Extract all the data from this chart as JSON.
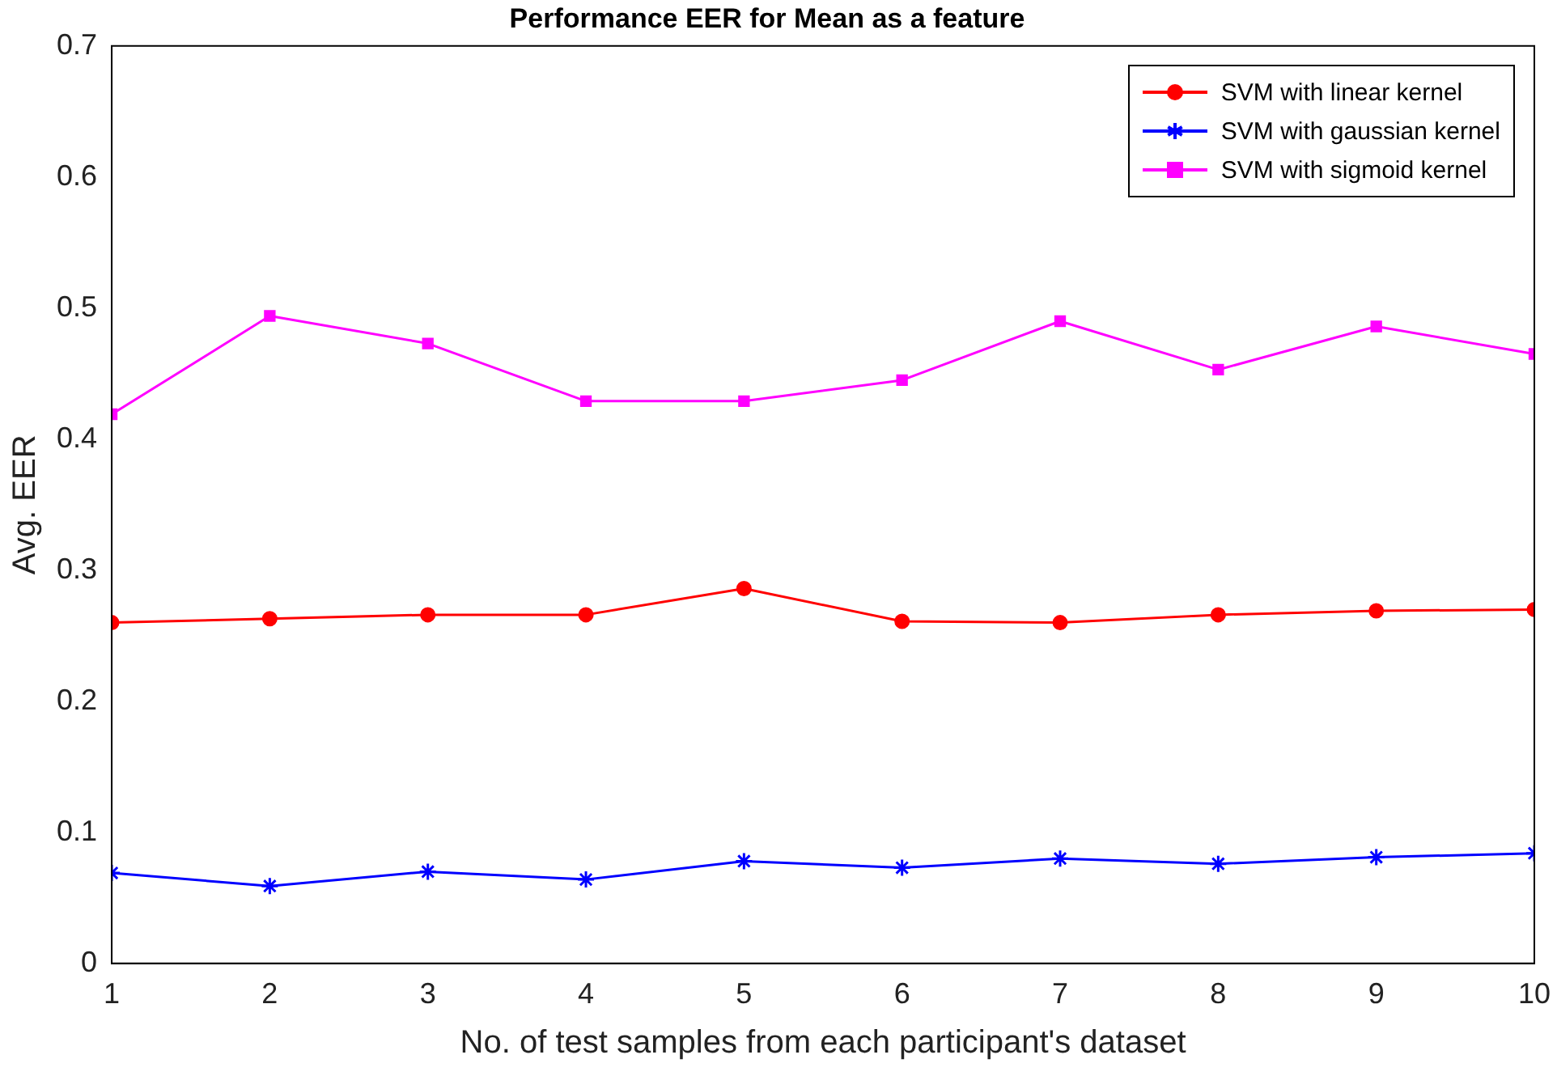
{
  "chart_data": {
    "type": "line",
    "title": "Performance EER for Mean as a feature",
    "xlabel": "No. of test samples from each participant's dataset",
    "ylabel": "Avg. EER",
    "x": [
      1,
      2,
      3,
      4,
      5,
      6,
      7,
      8,
      9,
      10
    ],
    "xlim": [
      1,
      10
    ],
    "xticks": [
      1,
      2,
      3,
      4,
      5,
      6,
      7,
      8,
      9,
      10
    ],
    "ylim": [
      0,
      0.7
    ],
    "yticks": [
      0,
      0.1,
      0.2,
      0.3,
      0.4,
      0.5,
      0.6,
      0.7
    ],
    "grid": false,
    "legend": "top right",
    "line_style": "solid",
    "series": [
      {
        "name": "SVM with linear kernel",
        "color": "#ff0000",
        "marker": "circle",
        "values": [
          0.26,
          0.263,
          0.266,
          0.266,
          0.286,
          0.261,
          0.26,
          0.266,
          0.269,
          0.27
        ]
      },
      {
        "name": "SVM with gaussian kernel",
        "color": "#0000ff",
        "marker": "cross",
        "values": [
          0.069,
          0.059,
          0.07,
          0.064,
          0.078,
          0.073,
          0.08,
          0.076,
          0.081,
          0.084
        ]
      },
      {
        "name": "SVM with sigmoid kernel",
        "color": "#ff00ff",
        "marker": "square",
        "values": [
          0.419,
          0.494,
          0.473,
          0.429,
          0.429,
          0.445,
          0.49,
          0.453,
          0.486,
          0.465
        ]
      }
    ]
  }
}
